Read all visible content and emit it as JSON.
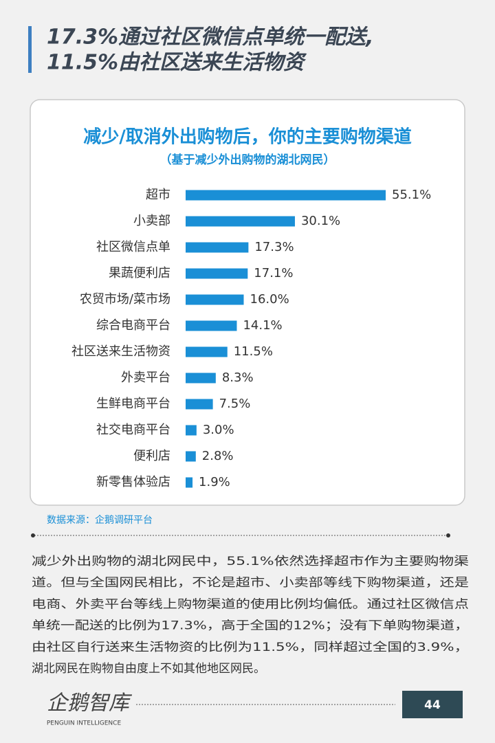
{
  "header": {
    "title_lines": [
      "17.3%通过社区微信点单统一配送,",
      "11.5%由社区送来生活物资"
    ]
  },
  "chart_data": {
    "type": "bar",
    "orientation": "horizontal",
    "title": "减少/取消外出购物后，你的主要购物渠道",
    "subtitle": "（基于减少外出购物的湖北网民）",
    "categories": [
      "超市",
      "小卖部",
      "社区微信点单",
      "果蔬便利店",
      "农贸市场/菜市场",
      "综合电商平台",
      "社区送来生活物资",
      "外卖平台",
      "生鲜电商平台",
      "社交电商平台",
      "便利店",
      "新零售体验店"
    ],
    "values": [
      55.1,
      30.1,
      17.3,
      17.1,
      16.0,
      14.1,
      11.5,
      8.3,
      7.5,
      3.0,
      2.8,
      1.9
    ],
    "value_labels": [
      "55.1%",
      "30.1%",
      "17.3%",
      "17.1%",
      "16.0%",
      "14.1%",
      "11.5%",
      "8.3%",
      "7.5%",
      "3.0%",
      "2.8%",
      "1.9%"
    ],
    "color": "#1a8fd6"
  },
  "source": "数据来源：企鹅调研平台",
  "paragraph": {
    "lines": [
      "减少外出购物的湖北网民中，55.1%依然选择超市作为主要购物渠",
      "道。但与全国网民相比，不论是超市、小卖部等线下购物渠道，还是",
      "电商、外卖平台等线上购物渠道的使用比例均偏低。通过社区微信点",
      "单统一配送的比例为17.3%，高于全国的12%；没有下单购物渠道，",
      "由社区自行送来生活物资的比例为11.5%，同样超过全国的3.9%，",
      "湖北网民在购物自由度上不如其他地区网民。"
    ]
  },
  "footer": {
    "logo": "企鹅智库",
    "logo_sub": "PENGUIN INTELLIGENCE",
    "page_number": "44"
  }
}
